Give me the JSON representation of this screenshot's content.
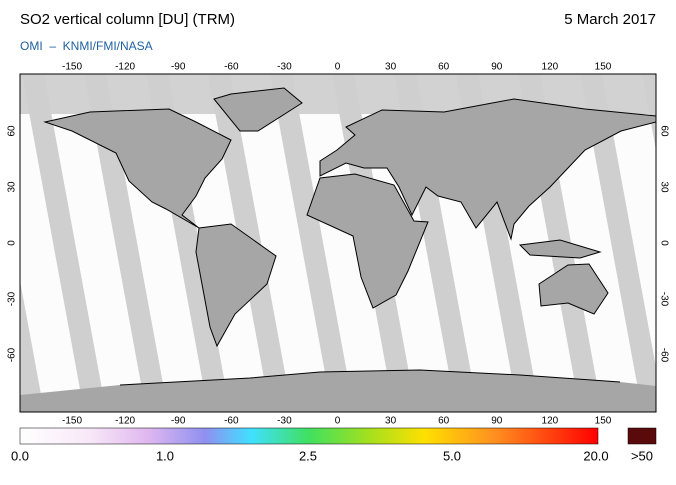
{
  "header": {
    "title": "SO2 vertical column [DU] (TRM)",
    "date": "5 March 2017",
    "credit": "OMI  –  KNMI/FMI/NASA"
  },
  "map": {
    "lon_ticks": [
      -150,
      -120,
      -90,
      -60,
      -30,
      0,
      30,
      60,
      90,
      120,
      150
    ],
    "lat_ticks": [
      60,
      30,
      0,
      -30,
      -60
    ]
  },
  "colorbar": {
    "labels": [
      "0.0",
      "1.0",
      "2.5",
      "5.0",
      "20.0",
      ">50"
    ]
  }
}
